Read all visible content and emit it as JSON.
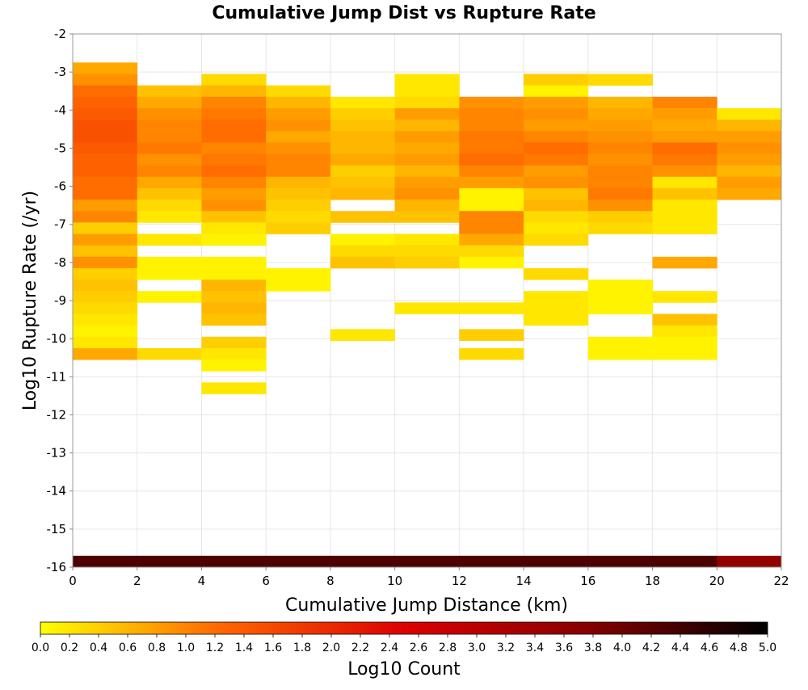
{
  "chart_data": {
    "type": "heatmap",
    "title": "Cumulative Jump Dist vs Rupture Rate",
    "xlabel": "Cumulative Jump Distance (km)",
    "ylabel": "Log10 Rupture Rate (/yr)",
    "xlim": [
      0,
      22
    ],
    "ylim": [
      -16,
      -2
    ],
    "x_ticks": [
      "0",
      "2",
      "4",
      "6",
      "8",
      "10",
      "12",
      "14",
      "16",
      "18",
      "20",
      "22"
    ],
    "y_ticks": [
      "-2",
      "-3",
      "-4",
      "-5",
      "-6",
      "-7",
      "-8",
      "-9",
      "-10",
      "-11",
      "-12",
      "-13",
      "-14",
      "-15",
      "-16"
    ],
    "cell_width": 2,
    "cell_height": 0.3,
    "grid": true,
    "color_scale": {
      "label": "Log10 Count",
      "min": 0.0,
      "max": 5.0,
      "colors": [
        "#ffff00",
        "#ff6600",
        "#dd0000",
        "#880000",
        "#000000"
      ],
      "ticks": [
        "0.0",
        "0.2",
        "0.4",
        "0.6",
        "0.8",
        "1.0",
        "1.2",
        "1.4",
        "1.6",
        "1.8",
        "2.0",
        "2.2",
        "2.4",
        "2.6",
        "2.8",
        "3.0",
        "3.2",
        "3.4",
        "3.6",
        "3.8",
        "4.0",
        "4.2",
        "4.4",
        "4.6",
        "4.8",
        "5.0"
      ]
    },
    "columns": [
      {
        "x0": 0,
        "cells": [
          [
            -3.05,
            0.7
          ],
          [
            -3.35,
            0.9
          ],
          [
            -3.65,
            1.2
          ],
          [
            -3.95,
            1.3
          ],
          [
            -4.25,
            1.4
          ],
          [
            -4.55,
            1.5
          ],
          [
            -4.85,
            1.5
          ],
          [
            -5.15,
            1.4
          ],
          [
            -5.45,
            1.3
          ],
          [
            -5.75,
            1.3
          ],
          [
            -6.05,
            1.2
          ],
          [
            -6.35,
            1.2
          ],
          [
            -6.65,
            0.8
          ],
          [
            -6.95,
            1.0
          ],
          [
            -7.25,
            0.4
          ],
          [
            -7.55,
            0.8
          ],
          [
            -7.85,
            0.5
          ],
          [
            -8.15,
            0.9
          ],
          [
            -8.45,
            0.4
          ],
          [
            -8.75,
            0.5
          ],
          [
            -9.05,
            0.4
          ],
          [
            -9.35,
            0.3
          ],
          [
            -9.65,
            0.2
          ],
          [
            -9.95,
            0.1
          ],
          [
            -10.25,
            0.2
          ],
          [
            -10.55,
            0.7
          ]
        ]
      },
      {
        "x0": 2,
        "cells": [
          [
            -3.65,
            0.5
          ],
          [
            -3.95,
            0.7
          ],
          [
            -4.25,
            0.9
          ],
          [
            -4.55,
            1.0
          ],
          [
            -4.85,
            1.0
          ],
          [
            -5.15,
            1.1
          ],
          [
            -5.45,
            0.9
          ],
          [
            -5.75,
            1.0
          ],
          [
            -6.05,
            0.7
          ],
          [
            -6.35,
            0.5
          ],
          [
            -6.65,
            0.3
          ],
          [
            -6.95,
            0.2
          ],
          [
            -7.55,
            0.2
          ],
          [
            -8.15,
            0.1
          ],
          [
            -8.45,
            0.1
          ],
          [
            -9.05,
            0.1
          ],
          [
            -10.55,
            0.3
          ]
        ]
      },
      {
        "x0": 4,
        "cells": [
          [
            -3.35,
            0.3
          ],
          [
            -3.65,
            0.6
          ],
          [
            -3.95,
            1.0
          ],
          [
            -4.25,
            1.1
          ],
          [
            -4.55,
            1.2
          ],
          [
            -4.85,
            1.2
          ],
          [
            -5.15,
            1.0
          ],
          [
            -5.45,
            1.1
          ],
          [
            -5.75,
            1.2
          ],
          [
            -6.05,
            1.0
          ],
          [
            -6.35,
            0.8
          ],
          [
            -6.65,
            0.9
          ],
          [
            -6.95,
            0.5
          ],
          [
            -7.25,
            0.2
          ],
          [
            -7.55,
            0.1
          ],
          [
            -8.15,
            0.1
          ],
          [
            -8.45,
            0.1
          ],
          [
            -8.75,
            0.6
          ],
          [
            -9.05,
            0.5
          ],
          [
            -9.35,
            0.6
          ],
          [
            -9.65,
            0.5
          ],
          [
            -10.25,
            0.4
          ],
          [
            -10.55,
            0.2
          ],
          [
            -10.85,
            0.1
          ],
          [
            -11.45,
            0.2
          ]
        ]
      },
      {
        "x0": 6,
        "cells": [
          [
            -3.65,
            0.3
          ],
          [
            -3.95,
            0.6
          ],
          [
            -4.25,
            0.8
          ],
          [
            -4.55,
            0.9
          ],
          [
            -4.85,
            0.7
          ],
          [
            -5.15,
            0.9
          ],
          [
            -5.45,
            1.0
          ],
          [
            -5.75,
            1.0
          ],
          [
            -6.05,
            0.6
          ],
          [
            -6.35,
            0.5
          ],
          [
            -6.65,
            0.4
          ],
          [
            -6.95,
            0.3
          ],
          [
            -7.25,
            0.4
          ],
          [
            -8.45,
            0.1
          ],
          [
            -8.75,
            0.1
          ]
        ]
      },
      {
        "x0": 8,
        "cells": [
          [
            -3.95,
            0.2
          ],
          [
            -4.25,
            0.4
          ],
          [
            -4.55,
            0.5
          ],
          [
            -4.85,
            0.6
          ],
          [
            -5.15,
            0.6
          ],
          [
            -5.45,
            0.7
          ],
          [
            -5.75,
            0.4
          ],
          [
            -6.05,
            0.5
          ],
          [
            -6.35,
            0.6
          ],
          [
            -6.95,
            0.5
          ],
          [
            -7.55,
            0.1
          ],
          [
            -7.85,
            0.3
          ],
          [
            -8.15,
            0.5
          ],
          [
            -10.05,
            0.2
          ]
        ]
      },
      {
        "x0": 10,
        "cells": [
          [
            -3.35,
            0.2
          ],
          [
            -3.65,
            0.2
          ],
          [
            -3.95,
            0.3
          ],
          [
            -4.25,
            0.8
          ],
          [
            -4.55,
            0.6
          ],
          [
            -4.85,
            0.8
          ],
          [
            -5.15,
            0.7
          ],
          [
            -5.45,
            0.8
          ],
          [
            -5.75,
            0.6
          ],
          [
            -6.05,
            0.8
          ],
          [
            -6.35,
            0.9
          ],
          [
            -6.65,
            0.6
          ],
          [
            -6.95,
            0.5
          ],
          [
            -7.55,
            0.2
          ],
          [
            -7.85,
            0.3
          ],
          [
            -8.15,
            0.4
          ],
          [
            -9.35,
            0.2
          ]
        ]
      },
      {
        "x0": 12,
        "cells": [
          [
            -3.95,
            0.9
          ],
          [
            -4.25,
            1.0
          ],
          [
            -4.55,
            1.0
          ],
          [
            -4.85,
            1.1
          ],
          [
            -5.15,
            1.1
          ],
          [
            -5.45,
            1.2
          ],
          [
            -5.75,
            1.0
          ],
          [
            -6.05,
            0.8
          ],
          [
            -6.35,
            0.1
          ],
          [
            -6.65,
            0.1
          ],
          [
            -6.95,
            1.0
          ],
          [
            -7.25,
            1.0
          ],
          [
            -7.55,
            0.7
          ],
          [
            -7.85,
            0.3
          ],
          [
            -8.15,
            0.1
          ],
          [
            -9.35,
            0.2
          ],
          [
            -10.05,
            0.4
          ],
          [
            -10.55,
            0.3
          ]
        ]
      },
      {
        "x0": 14,
        "cells": [
          [
            -3.35,
            0.4
          ],
          [
            -3.65,
            0.1
          ],
          [
            -3.95,
            0.8
          ],
          [
            -4.25,
            0.9
          ],
          [
            -4.55,
            0.8
          ],
          [
            -4.85,
            1.0
          ],
          [
            -5.15,
            1.2
          ],
          [
            -5.45,
            1.1
          ],
          [
            -5.75,
            0.8
          ],
          [
            -6.05,
            0.9
          ],
          [
            -6.35,
            0.5
          ],
          [
            -6.65,
            0.6
          ],
          [
            -6.95,
            0.3
          ],
          [
            -7.25,
            0.2
          ],
          [
            -7.55,
            0.3
          ],
          [
            -8.45,
            0.3
          ],
          [
            -9.05,
            0.2
          ],
          [
            -9.35,
            0.2
          ],
          [
            -9.65,
            0.2
          ]
        ]
      },
      {
        "x0": 16,
        "cells": [
          [
            -3.35,
            0.3
          ],
          [
            -3.95,
            0.6
          ],
          [
            -4.25,
            0.7
          ],
          [
            -4.55,
            0.8
          ],
          [
            -4.85,
            0.9
          ],
          [
            -5.15,
            1.0
          ],
          [
            -5.45,
            0.9
          ],
          [
            -5.75,
            1.0
          ],
          [
            -6.05,
            1.0
          ],
          [
            -6.35,
            1.1
          ],
          [
            -6.65,
            0.9
          ],
          [
            -6.95,
            0.4
          ],
          [
            -7.25,
            0.3
          ],
          [
            -8.75,
            0.1
          ],
          [
            -9.05,
            0.1
          ],
          [
            -9.35,
            0.1
          ],
          [
            -10.25,
            0.1
          ],
          [
            -10.55,
            0.1
          ]
        ]
      },
      {
        "x0": 18,
        "cells": [
          [
            -3.95,
            1.0
          ],
          [
            -4.25,
            0.8
          ],
          [
            -4.55,
            0.7
          ],
          [
            -4.85,
            0.8
          ],
          [
            -5.15,
            1.2
          ],
          [
            -5.45,
            1.1
          ],
          [
            -5.75,
            0.9
          ],
          [
            -6.05,
            0.2
          ],
          [
            -6.35,
            0.5
          ],
          [
            -6.65,
            0.2
          ],
          [
            -6.95,
            0.2
          ],
          [
            -7.25,
            0.2
          ],
          [
            -8.15,
            0.7
          ],
          [
            -9.05,
            0.2
          ],
          [
            -9.65,
            0.5
          ],
          [
            -9.95,
            0.2
          ],
          [
            -10.25,
            0.1
          ],
          [
            -10.55,
            0.1
          ]
        ]
      },
      {
        "x0": 20,
        "cells": [
          [
            -4.25,
            0.2
          ],
          [
            -4.55,
            0.6
          ],
          [
            -4.85,
            0.8
          ],
          [
            -5.15,
            0.9
          ],
          [
            -5.45,
            0.8
          ],
          [
            -5.75,
            0.6
          ],
          [
            -6.05,
            0.8
          ],
          [
            -6.35,
            0.7
          ]
        ]
      }
    ],
    "bottom_row": {
      "y0": -16,
      "values": [
        4.3,
        4.3,
        4.3,
        4.3,
        4.3,
        4.3,
        4.3,
        4.3,
        4.3,
        4.3,
        3.6
      ]
    }
  }
}
